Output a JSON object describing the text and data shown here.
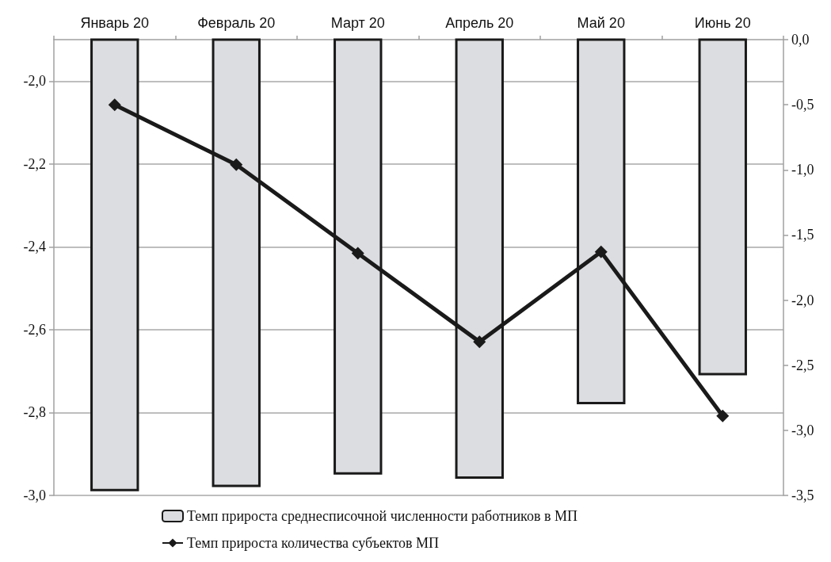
{
  "chart_data": {
    "type": "bar",
    "categories": [
      "Январь 20",
      "Февраль 20",
      "Март 20",
      "Апрель 20",
      "Май 20",
      "Июнь 20"
    ],
    "series": [
      {
        "name": "Темп прироста среднесписочной численности работников в МП",
        "color": "#dcdde0",
        "values": [
          -2.99,
          -2.98,
          -2.95,
          -2.96,
          -2.78,
          -2.71
        ]
      },
      {
        "name": "Темп прироста количества субъектов МП",
        "type": "line",
        "axis": "y2",
        "color": "#1a1a1a",
        "marker": "diamond",
        "values": [
          -0.5,
          -0.96,
          -1.64,
          -2.32,
          -1.63,
          -2.89
        ]
      }
    ],
    "ylim": [
      -3,
      -1.9
    ],
    "yticks": [
      {
        "value": -3,
        "label": "-3,0"
      },
      {
        "value": -2.8,
        "label": "-2,8"
      },
      {
        "value": -2.6,
        "label": "-2,6"
      },
      {
        "value": -2.4,
        "label": "-2,4"
      },
      {
        "value": -2.2,
        "label": "-2,2"
      },
      {
        "value": -2,
        "label": "-2,0"
      }
    ],
    "y2lim": [
      -3.5,
      0
    ],
    "y2ticks": [
      {
        "value": -3.5,
        "label": "-3,5"
      },
      {
        "value": -3,
        "label": "-3,0"
      },
      {
        "value": -2.5,
        "label": "-2,5"
      },
      {
        "value": -2,
        "label": "-2,0"
      },
      {
        "value": -1.5,
        "label": "-1,5"
      },
      {
        "value": -1,
        "label": "-1,0"
      },
      {
        "value": -0.5,
        "label": "-0,5"
      },
      {
        "value": 0,
        "label": "0,0"
      }
    ],
    "grid": "y",
    "legend": "bottom"
  }
}
